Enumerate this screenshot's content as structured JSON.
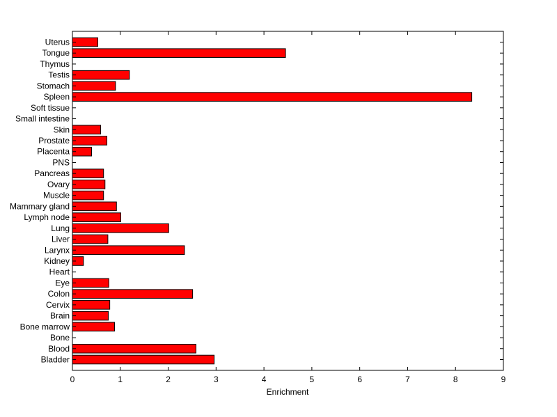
{
  "chart_data": {
    "type": "bar",
    "orientation": "horizontal",
    "title": "",
    "xlabel": "Enrichment",
    "ylabel": "",
    "xlim": [
      0,
      9
    ],
    "xticks": [
      0,
      1,
      2,
      3,
      4,
      5,
      6,
      7,
      8,
      9
    ],
    "grid": false,
    "bar_color": "#ff0000",
    "bar_edge_color": "#000000",
    "categories": [
      "Bladder",
      "Blood",
      "Bone",
      "Bone marrow",
      "Brain",
      "Cervix",
      "Colon",
      "Eye",
      "Heart",
      "Kidney",
      "Larynx",
      "Liver",
      "Lung",
      "Lymph node",
      "Mammary gland",
      "Muscle",
      "Ovary",
      "Pancreas",
      "PNS",
      "Placenta",
      "Prostate",
      "Skin",
      "Small intestine",
      "Soft tissue",
      "Spleen",
      "Stomach",
      "Testis",
      "Thymus",
      "Tongue",
      "Uterus"
    ],
    "values": [
      2.96,
      2.58,
      0,
      0.88,
      0.75,
      0.78,
      2.51,
      0.76,
      0,
      0.23,
      2.34,
      0.74,
      2.01,
      1.01,
      0.92,
      0.65,
      0.68,
      0.65,
      0,
      0.4,
      0.72,
      0.59,
      0,
      0,
      8.34,
      0.9,
      1.19,
      0,
      4.45,
      0.53
    ]
  }
}
